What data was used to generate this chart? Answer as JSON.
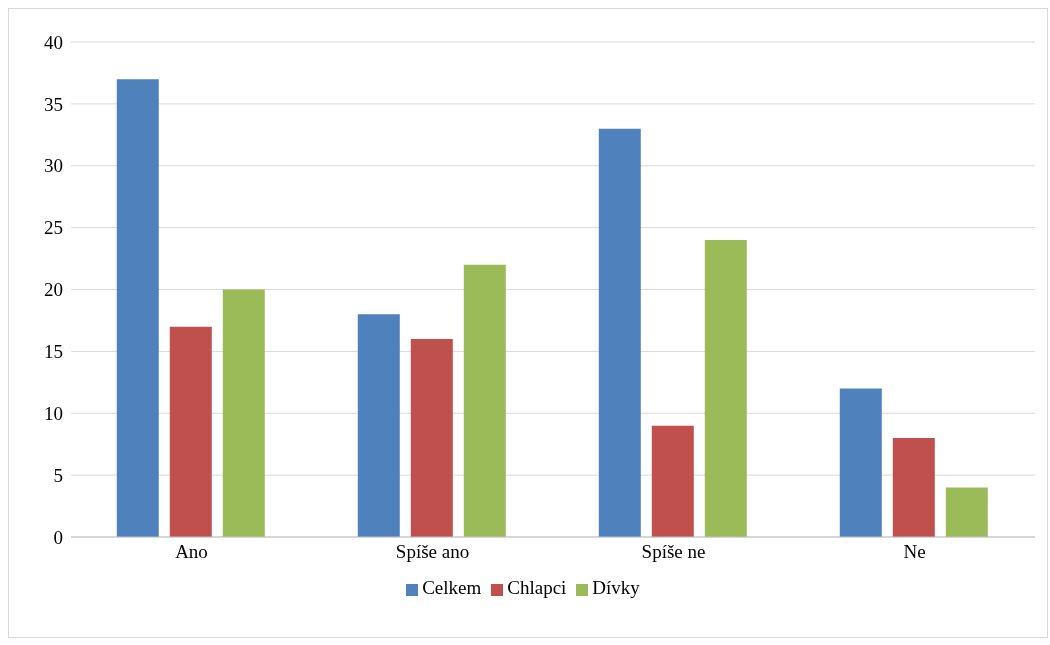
{
  "chart_data": {
    "type": "bar",
    "categories": [
      "Ano",
      "Spíše ano",
      "Spíše ne",
      "Ne"
    ],
    "series": [
      {
        "name": "Celkem",
        "color": "#4f81bd",
        "values": [
          37,
          18,
          33,
          12
        ]
      },
      {
        "name": "Chlapci",
        "color": "#c0504d",
        "values": [
          17,
          16,
          9,
          8
        ]
      },
      {
        "name": "Dívky",
        "color": "#9bbb59",
        "values": [
          20,
          22,
          24,
          4
        ]
      }
    ],
    "ylim": [
      0,
      40
    ],
    "yticks": [
      0,
      5,
      10,
      15,
      20,
      25,
      30,
      35,
      40
    ],
    "grid": "y",
    "legend": "bottom"
  }
}
